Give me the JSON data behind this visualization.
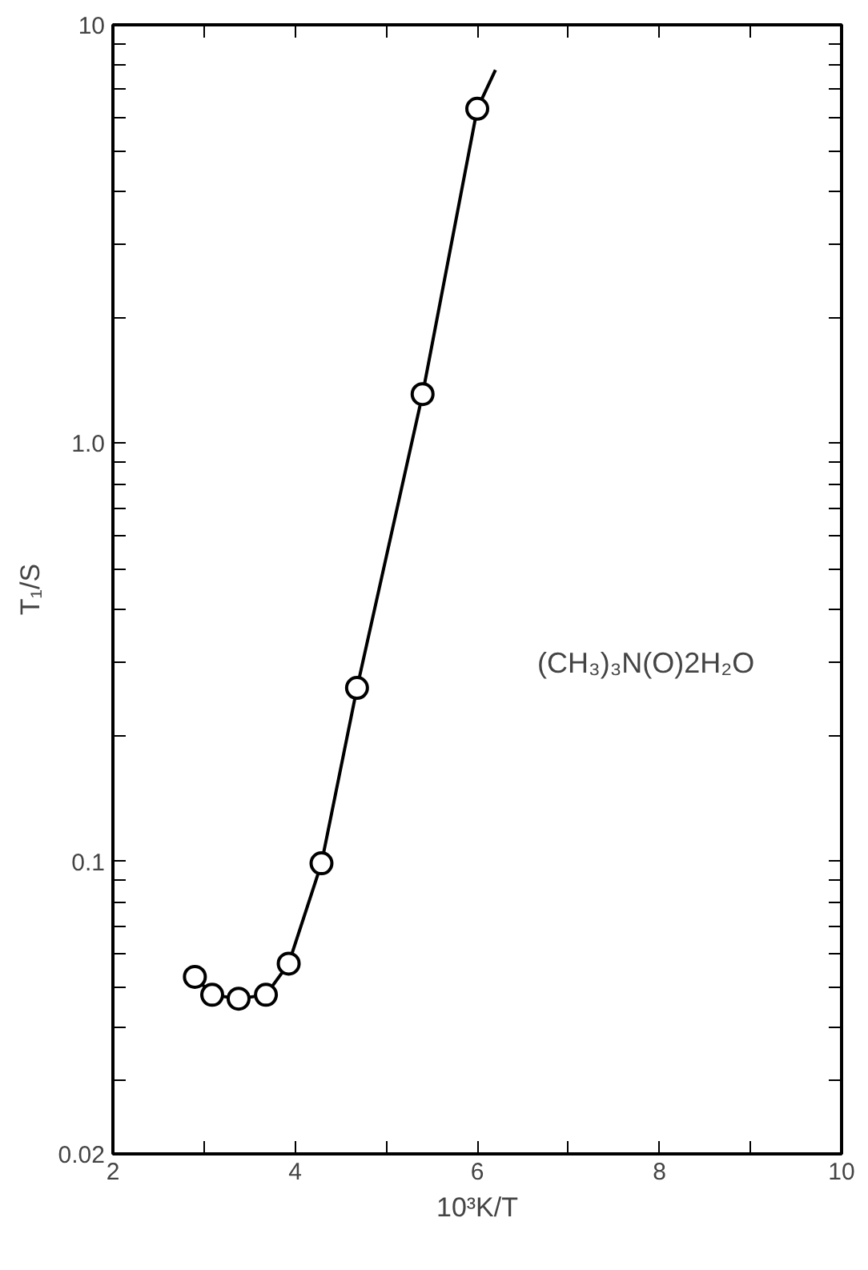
{
  "chart_data": {
    "type": "scatter",
    "xlabel": "10³K/T",
    "ylabel": "T₁/S",
    "annotations": [
      "(CH₃)₃N(O)2H₂O"
    ],
    "log": "y",
    "grid": false,
    "xlim": [
      2,
      10
    ],
    "xticks": [
      2,
      {
        "value": 3,
        "label": null
      },
      4,
      {
        "value": 5,
        "label": null
      },
      6,
      {
        "value": 7,
        "label": null
      },
      8,
      {
        "value": 9,
        "label": null
      },
      10
    ],
    "ylim": [
      0.02,
      10
    ],
    "yticks": [
      0.02,
      {
        "value": 0.03,
        "label": null
      },
      {
        "value": 0.04,
        "label": null
      },
      {
        "value": 0.05,
        "label": null
      },
      {
        "value": 0.06,
        "label": null
      },
      {
        "value": 0.07,
        "label": null
      },
      {
        "value": 0.08,
        "label": null
      },
      {
        "value": 0.09,
        "label": null
      },
      0.1,
      {
        "value": 0.2,
        "label": null
      },
      {
        "value": 0.3,
        "label": null
      },
      {
        "value": 0.4,
        "label": null
      },
      {
        "value": 0.5,
        "label": null
      },
      {
        "value": 0.6,
        "label": null
      },
      {
        "value": 0.7,
        "label": null
      },
      {
        "value": 0.8,
        "label": null
      },
      {
        "value": 0.9,
        "label": null
      },
      {
        "value": 1,
        "label": "1.0"
      },
      {
        "value": 2,
        "label": null
      },
      {
        "value": 3,
        "label": null
      },
      {
        "value": 4,
        "label": null
      },
      {
        "value": 5,
        "label": null
      },
      {
        "value": 6,
        "label": null
      },
      {
        "value": 7,
        "label": null
      },
      {
        "value": 8,
        "label": null
      },
      {
        "value": 9,
        "label": null
      },
      10
    ],
    "series": [
      {
        "type": "line",
        "color": "#000000",
        "marker": "none",
        "line_style": "solid",
        "x": [
          2.9,
          3.09,
          3.38,
          3.68,
          3.93,
          4.29,
          4.68,
          5.4,
          6.0,
          6.2
        ],
        "values": [
          0.053,
          0.048,
          0.047,
          0.048,
          0.057,
          0.099,
          0.26,
          1.31,
          6.3,
          7.8
        ]
      },
      {
        "color": "#000000",
        "marker": "circle",
        "x": [
          2.9,
          3.09,
          3.38,
          3.68,
          3.93,
          4.29,
          4.68,
          5.4,
          6.0
        ],
        "values": [
          0.053,
          0.048,
          0.047,
          0.048,
          0.057,
          0.099,
          0.26,
          1.31,
          6.3
        ]
      }
    ]
  }
}
